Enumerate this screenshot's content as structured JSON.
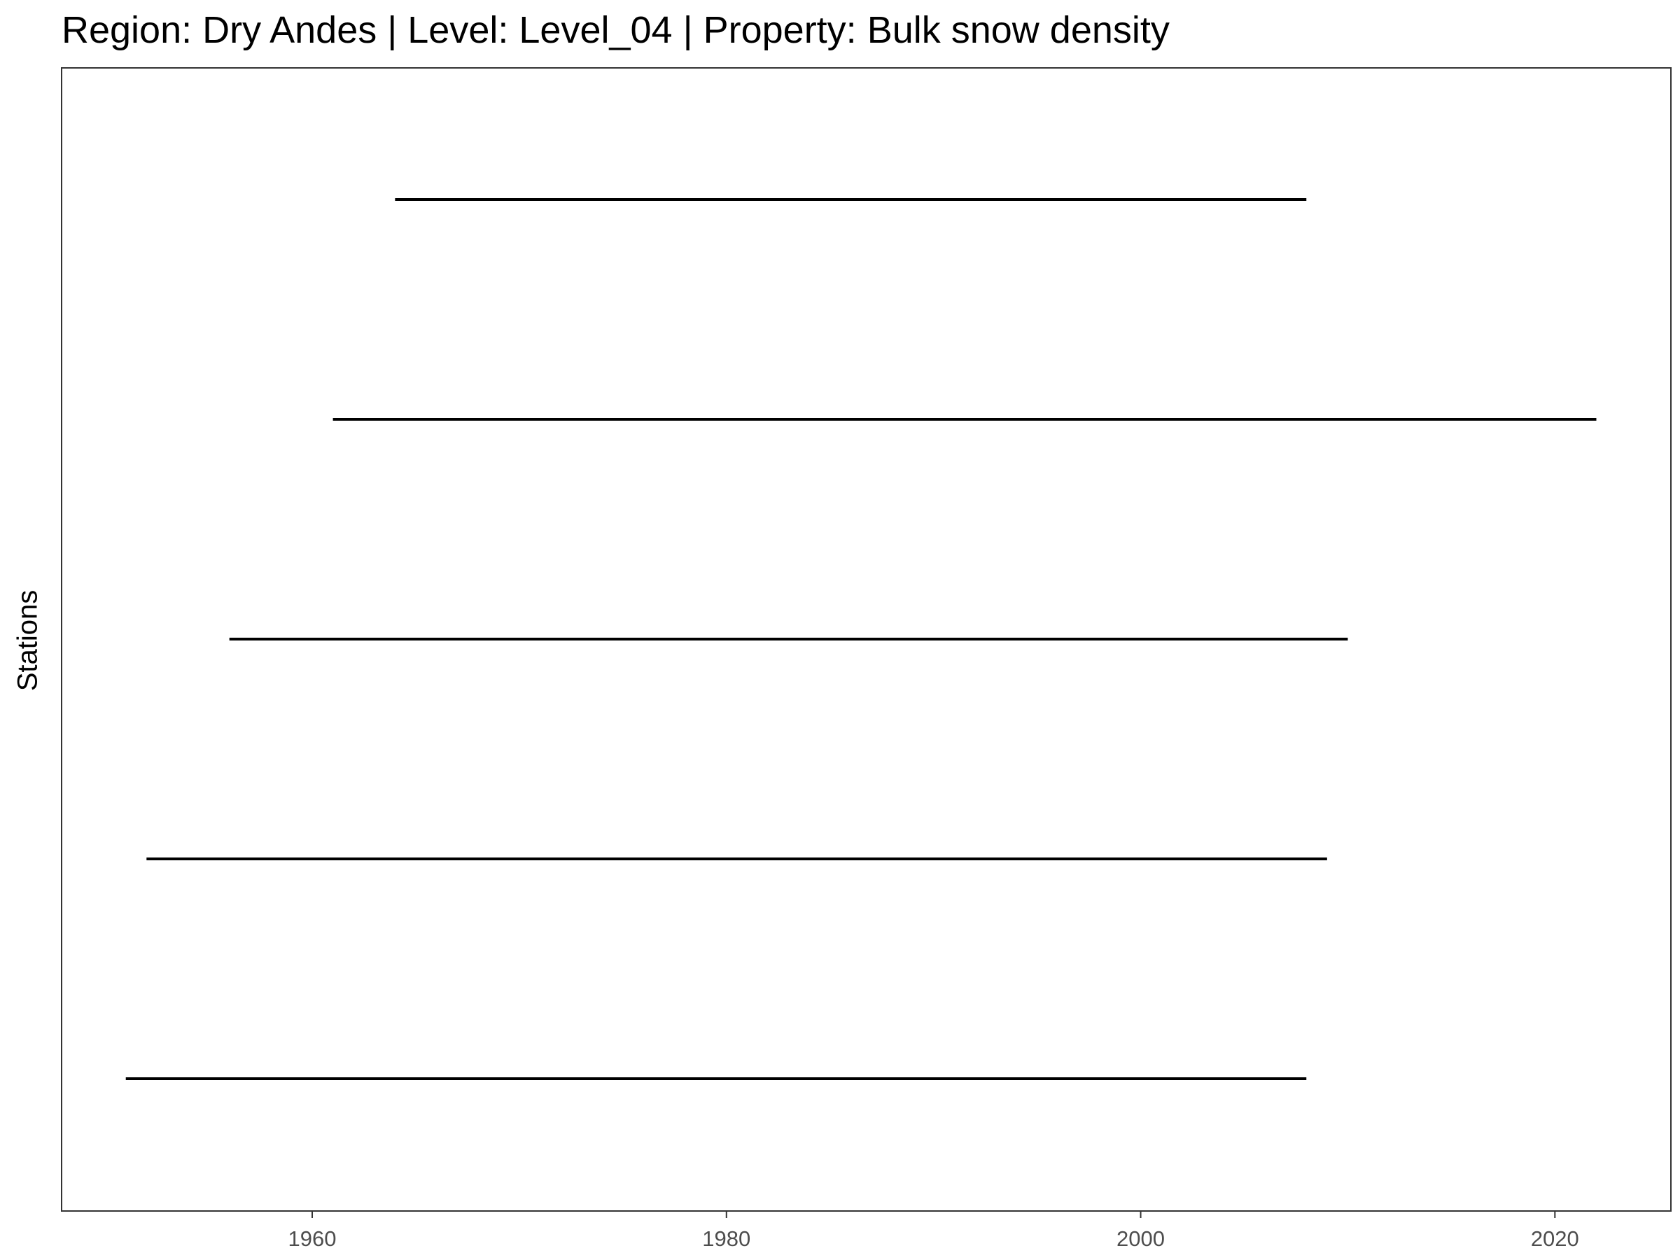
{
  "chart_data": {
    "type": "timeline",
    "title": "Region: Dry Andes | Level: Level_04 | Property: Bulk snow density",
    "xlabel": "",
    "ylabel": "Stations",
    "xlim": [
      1947.9,
      2025.6
    ],
    "xticks": [
      1960,
      1980,
      2000,
      2020
    ],
    "segments": [
      {
        "start": 1964,
        "end": 2008
      },
      {
        "start": 1961,
        "end": 2022
      },
      {
        "start": 1956,
        "end": 2010
      },
      {
        "start": 1952,
        "end": 2009
      },
      {
        "start": 1951,
        "end": 2008
      }
    ],
    "grid": false,
    "legend": "none"
  }
}
